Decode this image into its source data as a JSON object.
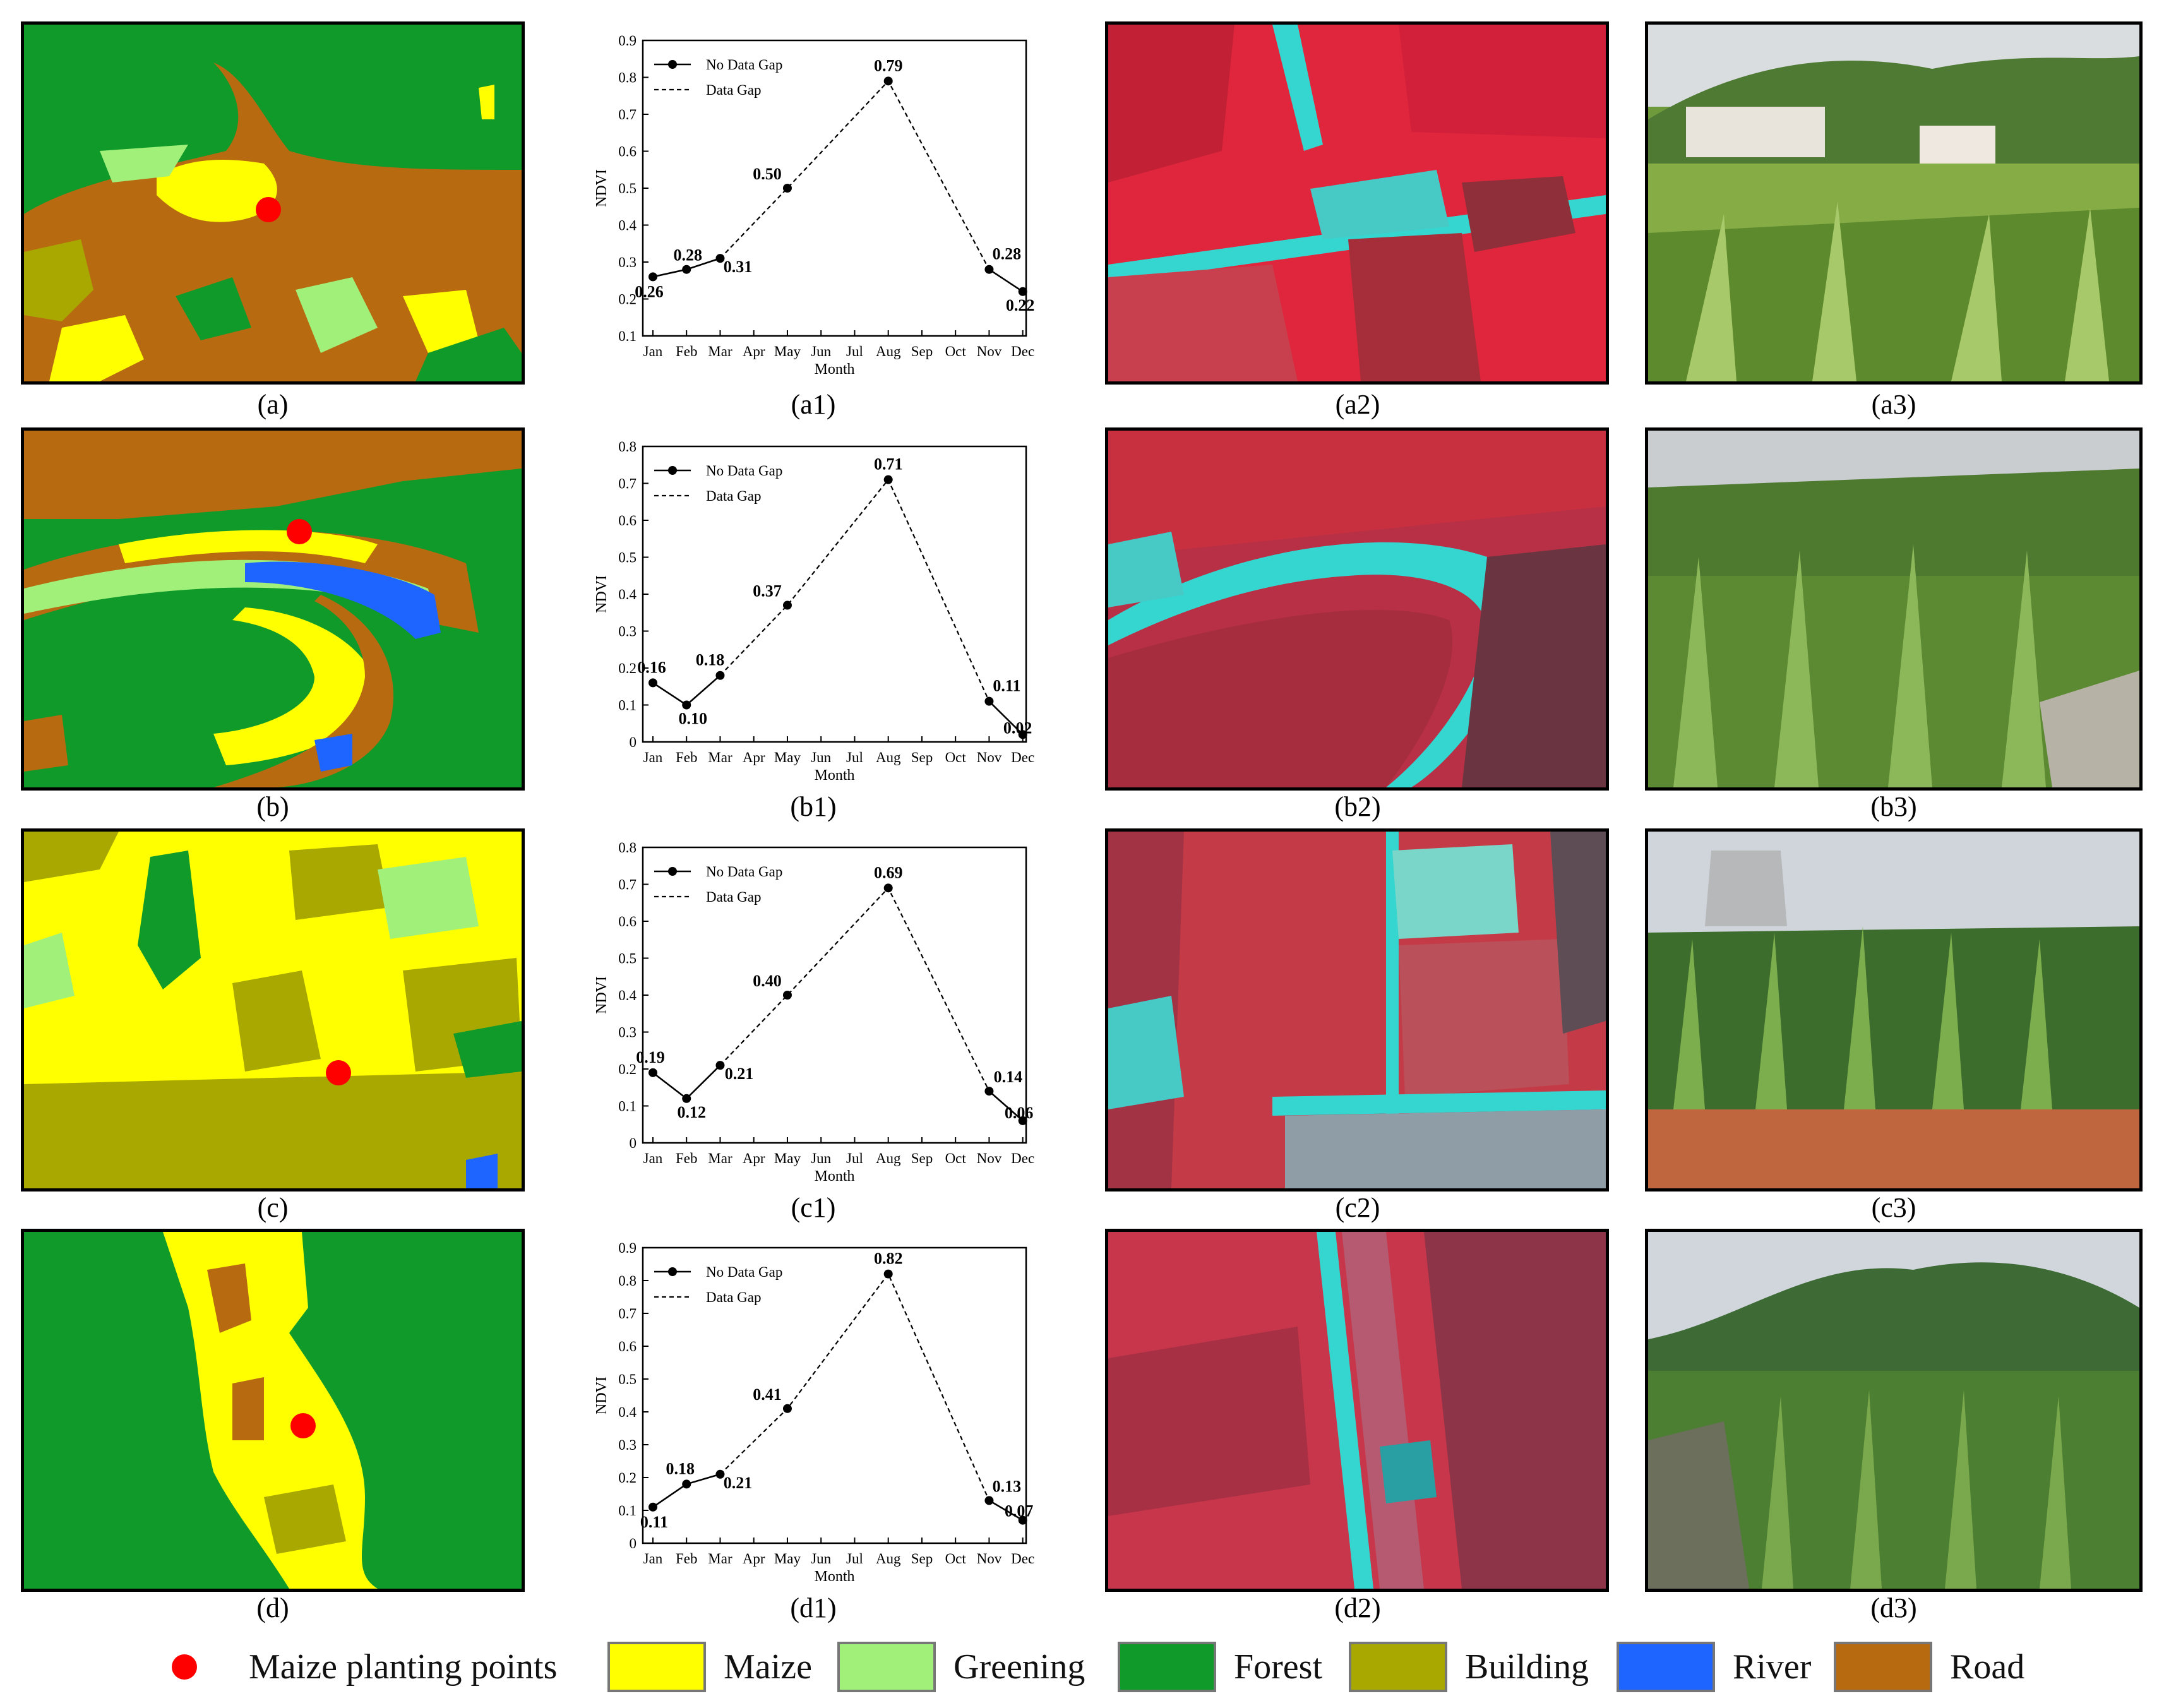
{
  "rows": [
    {
      "map_caption": "(a)",
      "chart_caption": "(a1)",
      "false_color_caption": "(a2)",
      "photo_caption": "(a3)"
    },
    {
      "map_caption": "(b)",
      "chart_caption": "(b1)",
      "false_color_caption": "(b2)",
      "photo_caption": "(b3)"
    },
    {
      "map_caption": "(c)",
      "chart_caption": "(c1)",
      "false_color_caption": "(c2)",
      "photo_caption": "(c3)"
    },
    {
      "map_caption": "(d)",
      "chart_caption": "(d1)",
      "false_color_caption": "(d2)",
      "photo_caption": "(d3)"
    }
  ],
  "legend": {
    "items": [
      {
        "label": "Maize planting points",
        "color": "#ff0000",
        "kind": "dot"
      },
      {
        "label": "Maize",
        "color": "#ffff00",
        "kind": "box"
      },
      {
        "label": "Greening",
        "color": "#a0f07a",
        "kind": "box"
      },
      {
        "label": "Forest",
        "color": "#0f9a2a",
        "kind": "box"
      },
      {
        "label": "Building",
        "color": "#a8a800",
        "kind": "box"
      },
      {
        "label": "River",
        "color": "#1e64ff",
        "kind": "box"
      },
      {
        "label": "Road",
        "color": "#b86a10",
        "kind": "box"
      }
    ]
  },
  "chart_data": [
    {
      "type": "line",
      "x": [
        "Jan",
        "Feb",
        "Mar",
        "Apr",
        "May",
        "Jun",
        "Jul",
        "Aug",
        "Sep",
        "Oct",
        "Nov",
        "Dec"
      ],
      "xlabel": "Month",
      "ylabel": "NDVI",
      "ylim": [
        0.1,
        0.9
      ],
      "yticks": [
        "0.1",
        "0.2",
        "0.3",
        "0.4",
        "0.5",
        "0.6",
        "0.7",
        "0.8",
        "0.9"
      ],
      "points": [
        {
          "x": "Jan",
          "y": 0.26,
          "label": "0.26"
        },
        {
          "x": "Feb",
          "y": 0.28,
          "label": "0.28"
        },
        {
          "x": "Mar",
          "y": 0.31,
          "label": "0.31"
        },
        {
          "x": "May",
          "y": 0.5,
          "label": "0.50"
        },
        {
          "x": "Aug",
          "y": 0.79,
          "label": "0.79"
        },
        {
          "x": "Nov",
          "y": 0.28,
          "label": "0.28"
        },
        {
          "x": "Dec",
          "y": 0.22,
          "label": "0.22"
        }
      ],
      "series": [
        {
          "name": "No Data Gap",
          "style": "solid",
          "segments": [
            [
              "Jan",
              "Feb",
              "Mar"
            ],
            [
              "Nov",
              "Dec"
            ]
          ]
        },
        {
          "name": "Data Gap",
          "style": "dashed",
          "segments": [
            [
              "Mar",
              "May",
              "Aug",
              "Nov"
            ]
          ]
        }
      ],
      "legend_position": "top-left",
      "grid": false
    },
    {
      "type": "line",
      "x": [
        "Jan",
        "Feb",
        "Mar",
        "Apr",
        "May",
        "Jun",
        "Jul",
        "Aug",
        "Sep",
        "Oct",
        "Nov",
        "Dec"
      ],
      "xlabel": "Month",
      "ylabel": "NDVI",
      "ylim": [
        0,
        0.8
      ],
      "yticks": [
        "0",
        "0.1",
        "0.2",
        "0.3",
        "0.4",
        "0.5",
        "0.6",
        "0.7",
        "0.8"
      ],
      "points": [
        {
          "x": "Jan",
          "y": 0.16,
          "label": "0.16"
        },
        {
          "x": "Feb",
          "y": 0.1,
          "label": "0.10"
        },
        {
          "x": "Mar",
          "y": 0.18,
          "label": "0.18"
        },
        {
          "x": "May",
          "y": 0.37,
          "label": "0.37"
        },
        {
          "x": "Aug",
          "y": 0.71,
          "label": "0.71"
        },
        {
          "x": "Nov",
          "y": 0.11,
          "label": "0.11"
        },
        {
          "x": "Dec",
          "y": 0.02,
          "label": "0.02"
        }
      ],
      "series": [
        {
          "name": "No Data Gap",
          "style": "solid",
          "segments": [
            [
              "Jan",
              "Feb",
              "Mar"
            ],
            [
              "Nov",
              "Dec"
            ]
          ]
        },
        {
          "name": "Data Gap",
          "style": "dashed",
          "segments": [
            [
              "Mar",
              "May",
              "Aug",
              "Nov"
            ]
          ]
        }
      ],
      "legend_position": "top-left",
      "grid": false
    },
    {
      "type": "line",
      "x": [
        "Jan",
        "Feb",
        "Mar",
        "Apr",
        "May",
        "Jun",
        "Jul",
        "Aug",
        "Sep",
        "Oct",
        "Nov",
        "Dec"
      ],
      "xlabel": "Month",
      "ylabel": "NDVI",
      "ylim": [
        0,
        0.8
      ],
      "yticks": [
        "0",
        "0.1",
        "0.2",
        "0.3",
        "0.4",
        "0.5",
        "0.6",
        "0.7",
        "0.8"
      ],
      "points": [
        {
          "x": "Jan",
          "y": 0.19,
          "label": "0.19"
        },
        {
          "x": "Feb",
          "y": 0.12,
          "label": "0.12"
        },
        {
          "x": "Mar",
          "y": 0.21,
          "label": "0.21"
        },
        {
          "x": "May",
          "y": 0.4,
          "label": "0.40"
        },
        {
          "x": "Aug",
          "y": 0.69,
          "label": "0.69"
        },
        {
          "x": "Nov",
          "y": 0.14,
          "label": "0.14"
        },
        {
          "x": "Dec",
          "y": 0.06,
          "label": "0.06"
        }
      ],
      "series": [
        {
          "name": "No Data Gap",
          "style": "solid",
          "segments": [
            [
              "Jan",
              "Feb",
              "Mar"
            ],
            [
              "Nov",
              "Dec"
            ]
          ]
        },
        {
          "name": "Data Gap",
          "style": "dashed",
          "segments": [
            [
              "Mar",
              "May",
              "Aug",
              "Nov"
            ]
          ]
        }
      ],
      "legend_position": "top-left",
      "grid": false
    },
    {
      "type": "line",
      "x": [
        "Jan",
        "Feb",
        "Mar",
        "Apr",
        "May",
        "Jun",
        "Jul",
        "Aug",
        "Sep",
        "Oct",
        "Nov",
        "Dec"
      ],
      "xlabel": "Month",
      "ylabel": "NDVI",
      "ylim": [
        0,
        0.9
      ],
      "yticks": [
        "0",
        "0.1",
        "0.2",
        "0.3",
        "0.4",
        "0.5",
        "0.6",
        "0.7",
        "0.8",
        "0.9"
      ],
      "points": [
        {
          "x": "Jan",
          "y": 0.11,
          "label": "0.11"
        },
        {
          "x": "Feb",
          "y": 0.18,
          "label": "0.18"
        },
        {
          "x": "Mar",
          "y": 0.21,
          "label": "0.21"
        },
        {
          "x": "May",
          "y": 0.41,
          "label": "0.41"
        },
        {
          "x": "Aug",
          "y": 0.82,
          "label": "0.82"
        },
        {
          "x": "Nov",
          "y": 0.13,
          "label": "0.13"
        },
        {
          "x": "Dec",
          "y": 0.07,
          "label": "0.07"
        }
      ],
      "series": [
        {
          "name": "No Data Gap",
          "style": "solid",
          "segments": [
            [
              "Jan",
              "Feb",
              "Mar"
            ],
            [
              "Nov",
              "Dec"
            ]
          ]
        },
        {
          "name": "Data Gap",
          "style": "dashed",
          "segments": [
            [
              "Mar",
              "May",
              "Aug",
              "Nov"
            ]
          ]
        }
      ],
      "legend_position": "top-left",
      "grid": false
    }
  ]
}
